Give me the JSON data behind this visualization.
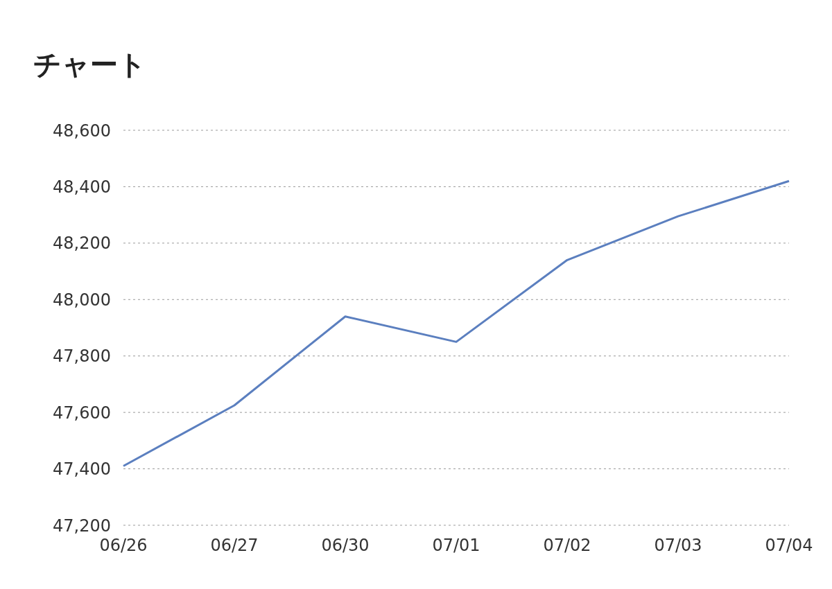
{
  "chart_data": {
    "type": "line",
    "title": "チャート",
    "categories": [
      "06/26",
      "06/27",
      "06/30",
      "07/01",
      "07/02",
      "07/03",
      "07/04"
    ],
    "series": [
      {
        "color": "#5b7fbf",
        "values": [
          47410,
          47625,
          47940,
          47850,
          48140,
          48295,
          48420
        ]
      }
    ],
    "ylim": [
      47200,
      48600
    ],
    "yticks": [
      {
        "value": 47200,
        "label": "47,200"
      },
      {
        "value": 47400,
        "label": "47,400"
      },
      {
        "value": 47600,
        "label": "47,600"
      },
      {
        "value": 47800,
        "label": "47,800"
      },
      {
        "value": 48000,
        "label": "48,000"
      },
      {
        "value": 48200,
        "label": "48,200"
      },
      {
        "value": 48400,
        "label": "48,400"
      },
      {
        "value": 48600,
        "label": "48,600"
      }
    ],
    "grid": "y",
    "legend": false,
    "marker": "none",
    "line_style": "solid"
  }
}
